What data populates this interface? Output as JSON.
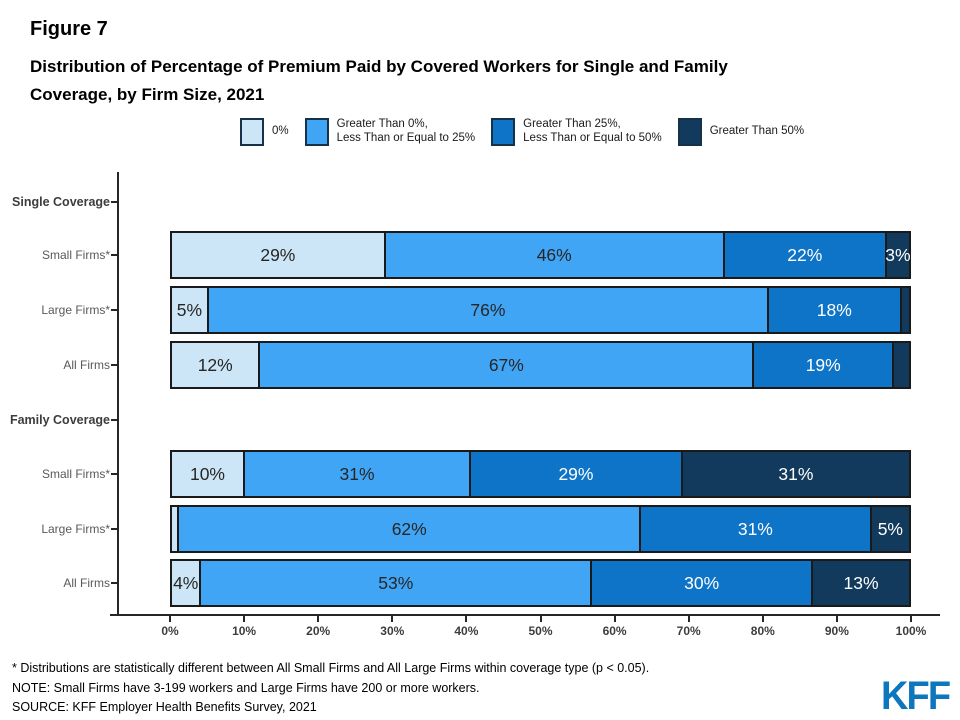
{
  "figure_label": "Figure 7",
  "title_line1": "Distribution of Percentage of Premium Paid by Covered Workers for Single and Family",
  "title_line2": "Coverage, by Firm Size, 2021",
  "chart_data": {
    "type": "bar",
    "stacked": true,
    "orientation": "horizontal",
    "x_axis": {
      "min": 0,
      "max": 100,
      "tick_labels": [
        "0%",
        "10%",
        "20%",
        "30%",
        "40%",
        "50%",
        "60%",
        "70%",
        "80%",
        "90%",
        "100%"
      ]
    },
    "legend_position": "top",
    "series_legend": [
      {
        "name": "0%",
        "color": "#CDE6F7",
        "text_color": "#262626"
      },
      {
        "name": "Greater Than 0%,\nLess Than or Equal to 25%",
        "color": "#41A5F6",
        "text_color": "#262626"
      },
      {
        "name": "Greater Than 25%,\nLess Than or Equal to 50%",
        "color": "#0E74C8",
        "text_color": "#FFFFFF"
      },
      {
        "name": "Greater Than 50%",
        "color": "#123A5C",
        "text_color": "#FFFFFF"
      }
    ],
    "rows": [
      {
        "label": "Single Coverage",
        "header": true,
        "values": null,
        "labels": null
      },
      {
        "label": "Small Firms*",
        "header": false,
        "values": [
          29,
          46,
          22,
          3
        ],
        "labels": [
          "29%",
          "46%",
          "22%",
          "3%"
        ]
      },
      {
        "label": "Large Firms*",
        "header": false,
        "values": [
          5,
          76,
          18,
          1
        ],
        "labels": [
          "5%",
          "76%",
          "18%",
          ""
        ]
      },
      {
        "label": "All Firms",
        "header": false,
        "values": [
          12,
          67,
          19,
          2
        ],
        "labels": [
          "12%",
          "67%",
          "19%",
          ""
        ]
      },
      {
        "label": "Family Coverage",
        "header": true,
        "values": null,
        "labels": null
      },
      {
        "label": "Small Firms*",
        "header": false,
        "values": [
          10,
          31,
          29,
          31
        ],
        "labels": [
          "10%",
          "31%",
          "29%",
          "31%"
        ]
      },
      {
        "label": "Large Firms*",
        "header": false,
        "values": [
          1,
          62,
          31,
          5
        ],
        "labels": [
          "",
          "62%",
          "31%",
          "5%"
        ]
      },
      {
        "label": "All Firms",
        "header": false,
        "values": [
          4,
          53,
          30,
          13
        ],
        "labels": [
          "4%",
          "53%",
          "30%",
          "13%"
        ]
      }
    ]
  },
  "footnotes": [
    "* Distributions are statistically different between All Small Firms and All Large Firms within coverage type (p < 0.05).",
    "NOTE: Small Firms have 3-199 workers and Large Firms have 200 or more workers.",
    "SOURCE: KFF Employer Health Benefits Survey, 2021"
  ],
  "logo_text": "KFF"
}
